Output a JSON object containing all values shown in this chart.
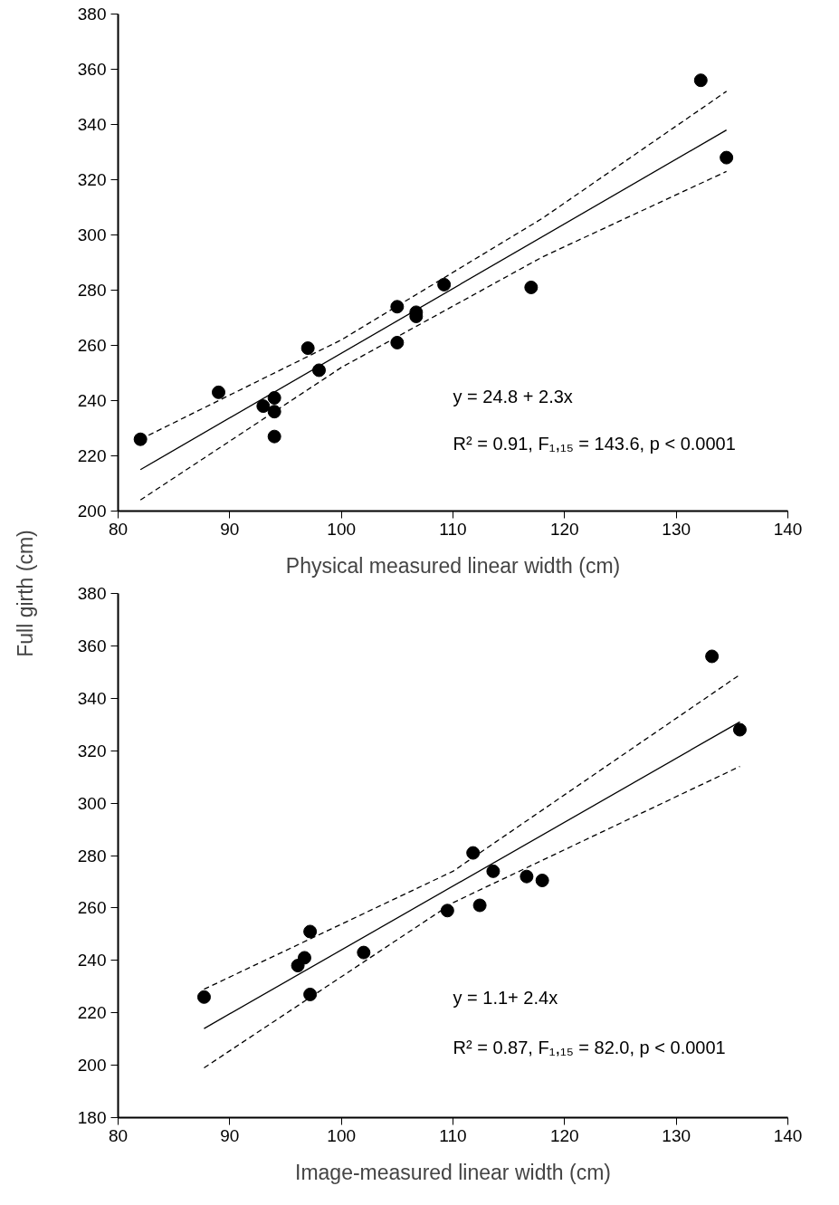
{
  "chart_data": [
    {
      "type": "scatter",
      "xlabel": "Physical measured linear width (cm)",
      "ylabel": "Full girth (cm)",
      "xlim": [
        80,
        140
      ],
      "ylim": [
        200,
        380
      ],
      "xticks": [
        80,
        90,
        100,
        110,
        120,
        130,
        140
      ],
      "yticks": [
        200,
        220,
        240,
        260,
        280,
        300,
        320,
        340,
        360,
        380
      ],
      "grid": false,
      "annotations": [
        "y = 24.8 + 2.3x",
        "R² = 0.91, F₁,₁₅ = 143.6, p < 0.0001"
      ],
      "series": [
        {
          "marker": "circle",
          "color": "#000000",
          "x": [
            82,
            89,
            93,
            94,
            94,
            94,
            97,
            98,
            105,
            105,
            106.7,
            106.7,
            109.2,
            117,
            132.2,
            134.5
          ],
          "values": [
            226,
            243,
            238,
            241,
            236,
            227,
            259,
            251,
            274,
            261,
            272,
            270.5,
            282,
            281,
            356,
            328
          ]
        },
        {
          "type": "line",
          "line_style": "solid",
          "color": "#000000",
          "x": [
            82,
            134.5
          ],
          "values": [
            215,
            338
          ]
        },
        {
          "type": "line",
          "line_style": "dashed",
          "color": "#000000",
          "x": [
            82,
            100,
            118,
            134.5
          ],
          "values": [
            226,
            262,
            306,
            352
          ]
        },
        {
          "type": "line",
          "line_style": "dashed",
          "color": "#000000",
          "x": [
            82,
            100,
            118,
            134.5
          ],
          "values": [
            204,
            252,
            292,
            323
          ]
        }
      ]
    },
    {
      "type": "scatter",
      "xlabel": "Image-measured linear width (cm)",
      "xlim": [
        80,
        140
      ],
      "ylim": [
        180,
        380
      ],
      "xticks": [
        80,
        90,
        100,
        110,
        120,
        130,
        140
      ],
      "yticks": [
        180,
        200,
        220,
        240,
        260,
        280,
        300,
        320,
        340,
        360,
        380
      ],
      "grid": false,
      "annotations": [
        "y = 1.1+ 2.4x",
        "R² = 0.87, F₁,₁₅ = 82.0, p < 0.0001"
      ],
      "series": [
        {
          "marker": "circle",
          "color": "#000000",
          "x": [
            87.7,
            96.1,
            96.7,
            97.2,
            97.2,
            102,
            109.5,
            111.8,
            112.4,
            113.6,
            116.6,
            118,
            133.2,
            135.7
          ],
          "values": [
            226,
            238,
            241,
            251,
            227,
            243,
            259,
            281,
            261,
            274,
            272,
            270.5,
            356,
            328
          ]
        },
        {
          "type": "line",
          "line_style": "solid",
          "color": "#000000",
          "x": [
            87.7,
            135.7
          ],
          "values": [
            214,
            331
          ]
        },
        {
          "type": "line",
          "line_style": "dashed",
          "color": "#000000",
          "x": [
            87.7,
            110,
            135.7
          ],
          "values": [
            229,
            274,
            349
          ]
        },
        {
          "type": "line",
          "line_style": "dashed",
          "color": "#000000",
          "x": [
            87.7,
            110,
            135.7
          ],
          "values": [
            199,
            262,
            314
          ]
        }
      ]
    }
  ]
}
